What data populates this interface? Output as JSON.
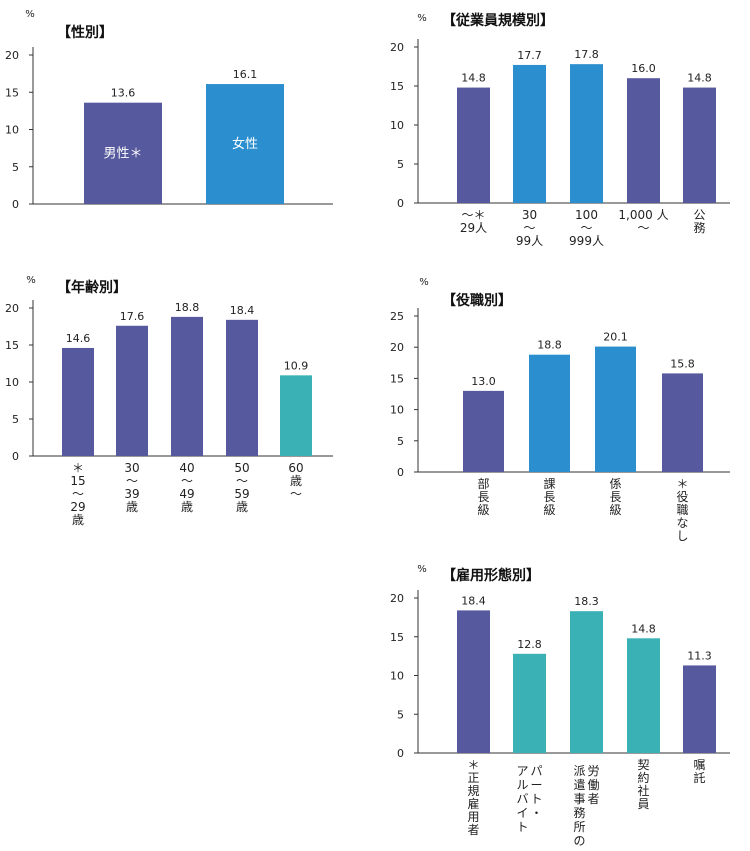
{
  "chart_data": [
    {
      "type": "bar",
      "title": "【性別】",
      "ylabel": "%",
      "ylim": [
        0,
        20
      ],
      "yticks": [
        0,
        5,
        10,
        15,
        20
      ],
      "categories": [
        "男性＊",
        "女性"
      ],
      "values": [
        13.6,
        16.1
      ],
      "colors": [
        "#56599e",
        "#2a8ecf"
      ],
      "label_inside": true
    },
    {
      "type": "bar",
      "title": "【従業員規模別】",
      "ylabel": "%",
      "ylim": [
        0,
        20
      ],
      "yticks": [
        0,
        5,
        10,
        15,
        20
      ],
      "categories": [
        "～＊\n29人",
        "30\n～\n99人",
        "100\n～\n999人",
        "1,000 人\n～",
        "公\n務"
      ],
      "values": [
        14.8,
        17.7,
        17.8,
        16.0,
        14.8
      ],
      "colors": [
        "#56599e",
        "#2a8ecf",
        "#2a8ecf",
        "#56599e",
        "#56599e"
      ]
    },
    {
      "type": "bar",
      "title": "【年齢別】",
      "ylabel": "%",
      "ylim": [
        0,
        20
      ],
      "yticks": [
        0,
        5,
        10,
        15,
        20
      ],
      "categories": [
        "＊\n15\n～\n29\n歳",
        "30\n～\n39\n歳",
        "40\n～\n49\n歳",
        "50\n～\n59\n歳",
        "60\n歳\n～"
      ],
      "values": [
        14.6,
        17.6,
        18.8,
        18.4,
        10.9
      ],
      "colors": [
        "#56599e",
        "#56599e",
        "#56599e",
        "#56599e",
        "#3ab1b5"
      ]
    },
    {
      "type": "bar",
      "title": "【役職別】",
      "ylabel": "%",
      "ylim": [
        0,
        25
      ],
      "yticks": [
        0,
        5,
        10,
        15,
        20,
        25
      ],
      "categories": [
        "部\n長\n級",
        "課\n長\n級",
        "係\n長\n級",
        "＊\n役\n職\nな\nし"
      ],
      "values": [
        13.0,
        18.8,
        20.1,
        15.8
      ],
      "colors": [
        "#56599e",
        "#2a8ecf",
        "#2a8ecf",
        "#56599e"
      ]
    },
    {
      "type": "bar",
      "title": "【雇用形態別】",
      "ylabel": "%",
      "ylim": [
        0,
        20
      ],
      "yticks": [
        0,
        5,
        10,
        15,
        20
      ],
      "categories": [
        "＊\n正\n規\n雇\n用\n者",
        "パ|ア\nー|ル\nト|バ\n・|イ\n |ト",
        "労|派\n働|遣\n者|事\n |務\n |所\n |の",
        "契\n約\n社\n員",
        "嘱\n託"
      ],
      "multi_column": [
        false,
        true,
        true,
        false,
        false
      ],
      "values": [
        18.4,
        12.8,
        18.3,
        14.8,
        11.3
      ],
      "colors": [
        "#56599e",
        "#3ab1b5",
        "#3ab1b5",
        "#3ab1b5",
        "#56599e"
      ]
    }
  ]
}
